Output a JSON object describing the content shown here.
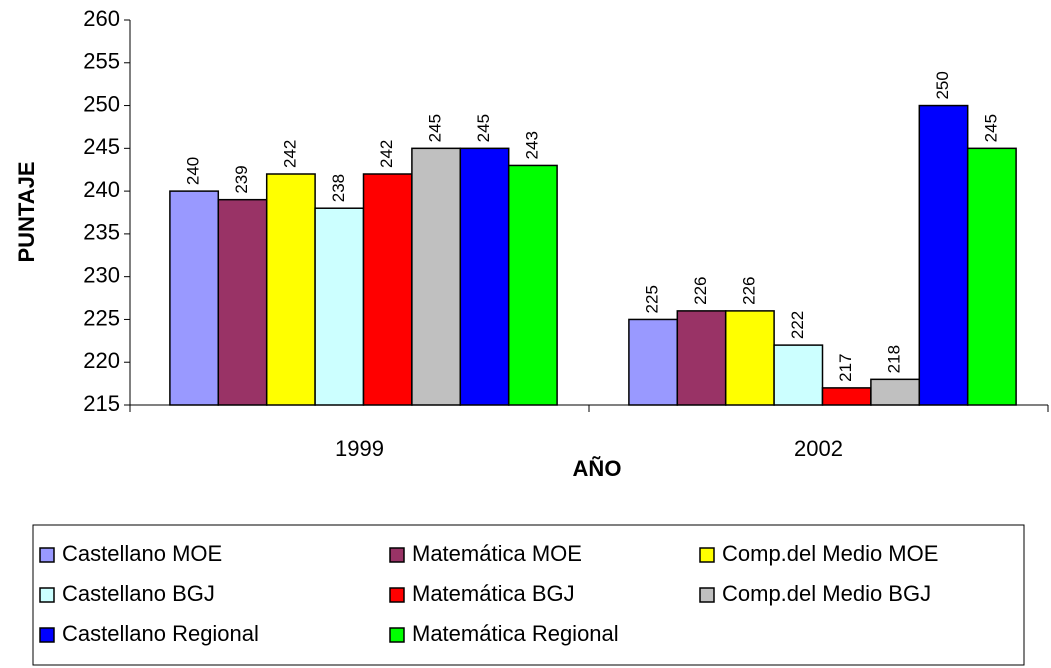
{
  "chart_data": {
    "type": "bar",
    "xlabel": "AÑO",
    "ylabel": "PUNTAJE",
    "categories": [
      "1999",
      "2002"
    ],
    "series": [
      {
        "name": "Castellano MOE",
        "color": "#9999ff",
        "values": [
          240,
          225
        ]
      },
      {
        "name": "Matemática MOE",
        "color": "#993366",
        "values": [
          239,
          226
        ]
      },
      {
        "name": "Comp.del Medio MOE",
        "color": "#ffff00",
        "values": [
          242,
          226
        ]
      },
      {
        "name": "Castellano BGJ",
        "color": "#ccffff",
        "values": [
          238,
          222
        ]
      },
      {
        "name": "Matemática BGJ",
        "color": "#ff0000",
        "values": [
          242,
          217
        ]
      },
      {
        "name": "Comp.del Medio BGJ",
        "color": "#c0c0c0",
        "values": [
          245,
          218
        ]
      },
      {
        "name": "Castellano Regional",
        "color": "#0000ff",
        "values": [
          245,
          250
        ]
      },
      {
        "name": "Matemática Regional",
        "color": "#00ff00",
        "values": [
          243,
          245
        ]
      }
    ],
    "ylim": [
      215,
      260
    ],
    "yticks": [
      215,
      220,
      225,
      230,
      235,
      240,
      245,
      250,
      255,
      260
    ],
    "grid": false,
    "legend": "bottom"
  }
}
